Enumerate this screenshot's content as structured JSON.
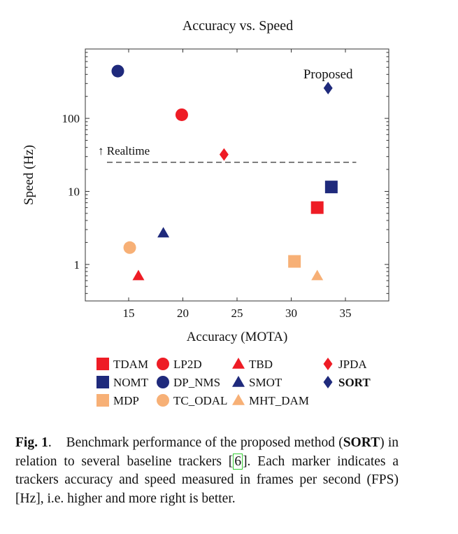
{
  "colors": {
    "red": "#ee1c25",
    "navy": "#1f2a7c",
    "orange": "#f7b076",
    "axis": "#333333"
  },
  "chart_data": {
    "type": "scatter",
    "title": "Accuracy vs. Speed",
    "xlabel": "Accuracy (MOTA)",
    "ylabel": "Speed (Hz)",
    "xlim": [
      11,
      39
    ],
    "ylim_log10": [
      -0.5,
      2.95
    ],
    "xticks": [
      15,
      20,
      25,
      30,
      35
    ],
    "yticks": [
      1,
      10,
      100
    ],
    "yscale": "log",
    "grid": false,
    "realtime": {
      "label": "↑ Realtime",
      "y": 25,
      "x_range": [
        13,
        36
      ]
    },
    "annotation": {
      "text": "Proposed",
      "target": "SORT"
    },
    "points": [
      {
        "name": "TDAM",
        "x": 32.4,
        "y": 6,
        "marker": "square",
        "color": "red"
      },
      {
        "name": "LP2D",
        "x": 19.9,
        "y": 112,
        "marker": "circle",
        "color": "red"
      },
      {
        "name": "TBD",
        "x": 15.9,
        "y": 0.7,
        "marker": "triangle",
        "color": "red"
      },
      {
        "name": "JPDA",
        "x": 23.8,
        "y": 32,
        "marker": "diamond",
        "color": "red"
      },
      {
        "name": "NOMT",
        "x": 33.7,
        "y": 11.5,
        "marker": "square",
        "color": "navy"
      },
      {
        "name": "DP_NMS",
        "x": 14.0,
        "y": 444,
        "marker": "circle",
        "color": "navy"
      },
      {
        "name": "SMOT",
        "x": 18.2,
        "y": 2.7,
        "marker": "triangle",
        "color": "navy"
      },
      {
        "name": "SORT",
        "x": 33.4,
        "y": 260,
        "marker": "diamond",
        "color": "navy"
      },
      {
        "name": "MDP",
        "x": 30.3,
        "y": 1.1,
        "marker": "square",
        "color": "orange"
      },
      {
        "name": "TC_ODAL",
        "x": 15.1,
        "y": 1.7,
        "marker": "circle",
        "color": "orange"
      },
      {
        "name": "MHT_DAM",
        "x": 32.4,
        "y": 0.7,
        "marker": "triangle",
        "color": "orange"
      }
    ],
    "legend": {
      "placement": "bottom",
      "rows": [
        [
          {
            "label": "TDAM",
            "marker": "square",
            "color": "red"
          },
          {
            "label": "LP2D",
            "marker": "circle",
            "color": "red"
          },
          {
            "label": "TBD",
            "marker": "triangle",
            "color": "red"
          },
          {
            "label": "JPDA",
            "marker": "diamond",
            "color": "red"
          }
        ],
        [
          {
            "label": "NOMT",
            "marker": "square",
            "color": "navy"
          },
          {
            "label": "DP_NMS",
            "marker": "circle",
            "color": "navy"
          },
          {
            "label": "SMOT",
            "marker": "triangle",
            "color": "navy"
          },
          {
            "label": "SORT",
            "marker": "diamond",
            "color": "navy",
            "bold": true
          }
        ],
        [
          {
            "label": "MDP",
            "marker": "square",
            "color": "orange"
          },
          {
            "label": "TC_ODAL",
            "marker": "circle",
            "color": "orange"
          },
          {
            "label": "MHT_DAM",
            "marker": "triangle",
            "color": "orange"
          }
        ]
      ]
    }
  },
  "caption": {
    "label": "Fig. 1",
    "text_before": "Benchmark performance of the proposed method (",
    "sort_bold": "SORT",
    "text_middle": ") in relation to several baseline trackers [",
    "ref": "6",
    "text_after": "]. Each marker indicates a trackers accuracy and speed measured in frames per second (FPS) [Hz], i.e. higher and more right is better."
  }
}
